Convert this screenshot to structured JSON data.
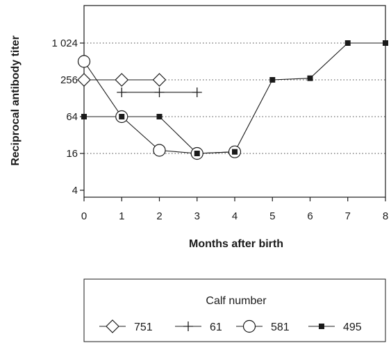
{
  "chart_data": {
    "type": "line",
    "title": "",
    "xlabel": "Months after birth",
    "ylabel": "Reciprocal antibody titer",
    "x_ticks": [
      0,
      1,
      2,
      3,
      4,
      5,
      6,
      7,
      8
    ],
    "xlim": [
      0,
      8
    ],
    "y_scale": "log2",
    "y_ticks": [
      4,
      16,
      64,
      256,
      1024
    ],
    "y_tick_labels": [
      "4",
      "16",
      "64",
      "256",
      "1 024"
    ],
    "ylim": [
      4,
      4096
    ],
    "grid": "horizontal dotted at y ticks",
    "legend": {
      "title": "Calf number",
      "placement": "bottom"
    },
    "series": [
      {
        "name": "751",
        "marker": "diamond-open",
        "x": [
          0,
          1,
          2
        ],
        "values": [
          256,
          256,
          256
        ]
      },
      {
        "name": "61",
        "marker": "plus",
        "x": [
          1,
          2,
          3
        ],
        "values": [
          160,
          160,
          160
        ]
      },
      {
        "name": "581",
        "marker": "circle-open",
        "x": [
          0,
          1,
          2,
          3,
          4
        ],
        "values": [
          512,
          64,
          18,
          16,
          17
        ]
      },
      {
        "name": "495",
        "marker": "square-filled",
        "x": [
          0,
          1,
          2,
          3,
          4,
          5,
          6,
          7,
          8
        ],
        "values": [
          64,
          64,
          64,
          16,
          17,
          256,
          272,
          1024,
          1024
        ]
      }
    ]
  }
}
